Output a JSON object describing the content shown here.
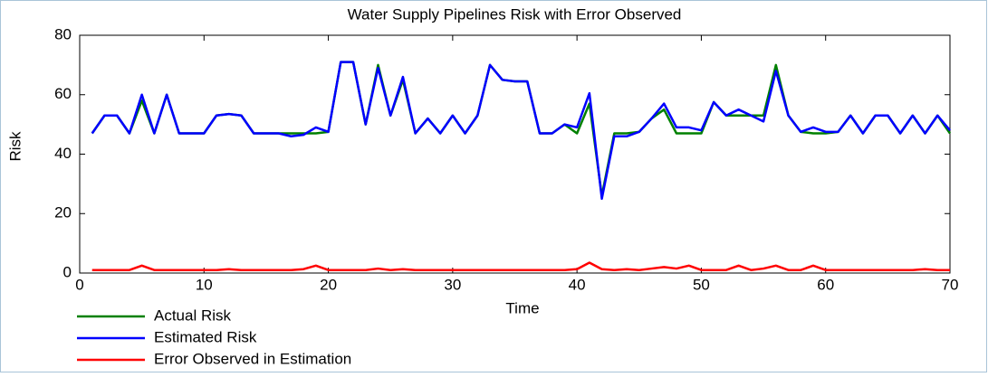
{
  "chart_data": {
    "type": "line",
    "title": "Water Supply Pipelines Risk with Error Observed",
    "xlabel": "Time",
    "ylabel": "Risk",
    "x": [
      1,
      2,
      3,
      4,
      5,
      6,
      7,
      8,
      9,
      10,
      11,
      12,
      13,
      14,
      15,
      16,
      17,
      18,
      19,
      20,
      21,
      22,
      23,
      24,
      25,
      26,
      27,
      28,
      29,
      30,
      31,
      32,
      33,
      34,
      35,
      36,
      37,
      38,
      39,
      40,
      41,
      42,
      43,
      44,
      45,
      46,
      47,
      48,
      49,
      50,
      51,
      52,
      53,
      54,
      55,
      56,
      57,
      58,
      59,
      60,
      61,
      62,
      63,
      64,
      65,
      66,
      67,
      68,
      69,
      70
    ],
    "series": [
      {
        "name": "Actual Risk",
        "color": "#008000",
        "values": [
          47,
          53,
          53,
          47,
          58,
          47,
          60,
          47,
          47,
          47,
          53,
          53.5,
          53,
          47,
          47,
          47,
          47,
          47,
          47,
          47.5,
          71,
          71,
          50,
          70,
          53,
          65,
          47,
          52,
          47,
          53,
          47,
          53,
          70,
          65,
          64.5,
          64.5,
          47,
          47,
          50,
          47,
          57,
          26,
          47,
          47,
          47.5,
          52,
          55,
          47,
          47,
          47,
          57.5,
          53,
          53,
          53,
          53,
          70,
          53,
          47.5,
          47,
          47,
          47.5,
          53,
          47,
          53,
          53,
          47,
          53,
          47,
          53,
          47
        ]
      },
      {
        "name": "Estimated Risk",
        "color": "#0000ff",
        "values": [
          47,
          53,
          53,
          47,
          60,
          47,
          60,
          47,
          47,
          47,
          53,
          53.5,
          53,
          47,
          47,
          47,
          46,
          46.5,
          49,
          47.5,
          71,
          71,
          50,
          69,
          53,
          66,
          47,
          52,
          47,
          53,
          47,
          53,
          70,
          65,
          64.5,
          64.5,
          47,
          47,
          50,
          49,
          60.5,
          25,
          46,
          46,
          47.5,
          52,
          57,
          49,
          49,
          48,
          57.5,
          53,
          55,
          53,
          51,
          68,
          53,
          47.5,
          49,
          47.5,
          47.5,
          53,
          47,
          53,
          53,
          47,
          53,
          47,
          53,
          48
        ]
      },
      {
        "name": "Error Observed in Estimation",
        "color": "#ff0000",
        "values": [
          1,
          1,
          1,
          1,
          2.5,
          1,
          1,
          1,
          1,
          1,
          1,
          1.3,
          1,
          1,
          1,
          1,
          1,
          1.3,
          2.5,
          1,
          1,
          1,
          1,
          1.5,
          1,
          1.3,
          1,
          1,
          1,
          1,
          1,
          1,
          1,
          1,
          1,
          1,
          1,
          1,
          1,
          1.3,
          3.5,
          1.3,
          1,
          1.3,
          1,
          1.5,
          2,
          1.5,
          2.5,
          1,
          1,
          1,
          2.5,
          1,
          1.5,
          2.5,
          1,
          1,
          2.5,
          1,
          1,
          1,
          1,
          1,
          1,
          1,
          1,
          1.3,
          1,
          1
        ]
      }
    ],
    "xlim": [
      0,
      70
    ],
    "xticks": [
      0,
      10,
      20,
      30,
      40,
      50,
      60,
      70
    ],
    "ylim": [
      0,
      80
    ],
    "yticks": [
      0,
      20,
      40,
      60,
      80
    ],
    "grid": false,
    "legend": "bottom left"
  }
}
